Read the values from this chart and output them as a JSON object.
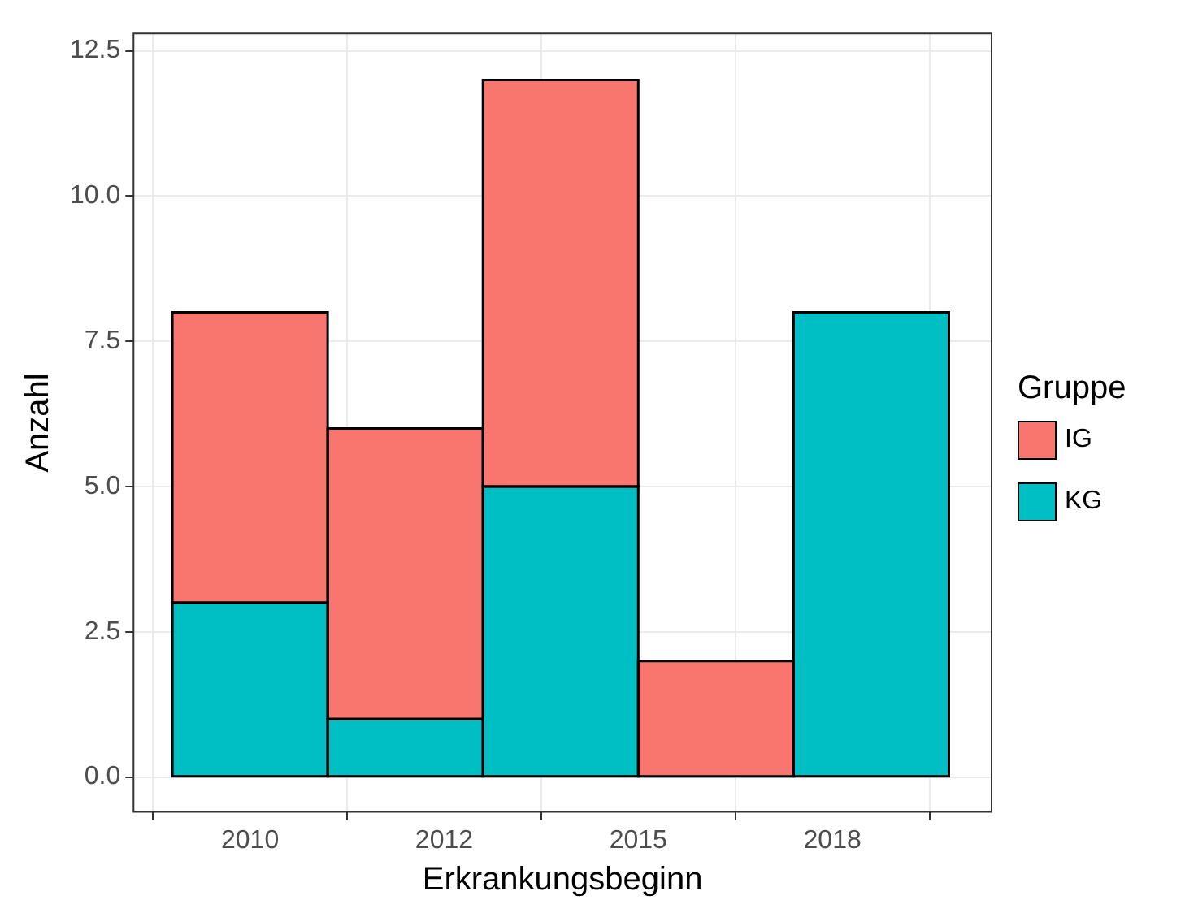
{
  "chart_data": {
    "type": "bar",
    "xlabel": "Erkrankungsbeginn",
    "ylabel": "Anzahl",
    "legend_title": "Gruppe",
    "legend": "right",
    "grid": true,
    "stacked": true,
    "x": [
      2010,
      2012,
      2014,
      2016,
      2018
    ],
    "series": [
      {
        "name": "KG",
        "color": "#00bfc4",
        "values": [
          3,
          1,
          5,
          0,
          8
        ]
      },
      {
        "name": "IG",
        "color": "#f8766d",
        "values": [
          5,
          5,
          7,
          2,
          0
        ]
      }
    ],
    "xlim": [
      2008.5,
      2019.55
    ],
    "xticks": [
      {
        "value": 2010,
        "label": "2010"
      },
      {
        "value": 2012.5,
        "label": "2012"
      },
      {
        "value": 2015,
        "label": "2015"
      },
      {
        "value": 2017.5,
        "label": "2018"
      }
    ],
    "ylim": [
      -0.6,
      12.8
    ],
    "yticks": [
      {
        "value": 0,
        "label": "0.0"
      },
      {
        "value": 2.5,
        "label": "2.5"
      },
      {
        "value": 5,
        "label": "5.0"
      },
      {
        "value": 7.5,
        "label": "7.5"
      },
      {
        "value": 10,
        "label": "10.0"
      },
      {
        "value": 12.5,
        "label": "12.5"
      }
    ]
  }
}
